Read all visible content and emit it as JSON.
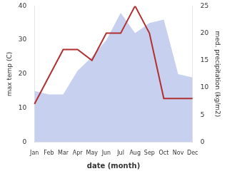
{
  "chart_data": {
    "type": "line",
    "categories": [
      "Jan",
      "Feb",
      "Mar",
      "Apr",
      "May",
      "Jun",
      "Jul",
      "Aug",
      "Sep",
      "Oct",
      "Nov",
      "Dec"
    ],
    "xlabel": "date (month)",
    "ylabel": "max temp (C)",
    "y2label": "med. precipitation (kg/m2)",
    "series": [
      {
        "type": "area",
        "color": "#c8d0f0",
        "values": [
          15,
          14,
          14,
          21,
          25,
          30,
          38,
          32,
          35,
          36,
          20,
          19
        ]
      },
      {
        "type": "line",
        "color": "#b03030",
        "axis": "y2",
        "values": [
          7,
          12,
          17,
          17,
          15,
          20,
          20,
          25,
          20,
          8,
          8,
          8
        ]
      }
    ],
    "ylim": [
      0,
      40
    ],
    "yticks": [
      0,
      10,
      20,
      30,
      40
    ],
    "y2lim": [
      0,
      25
    ],
    "y2ticks": [
      0,
      5,
      10,
      15,
      20,
      25
    ],
    "grid": false
  }
}
